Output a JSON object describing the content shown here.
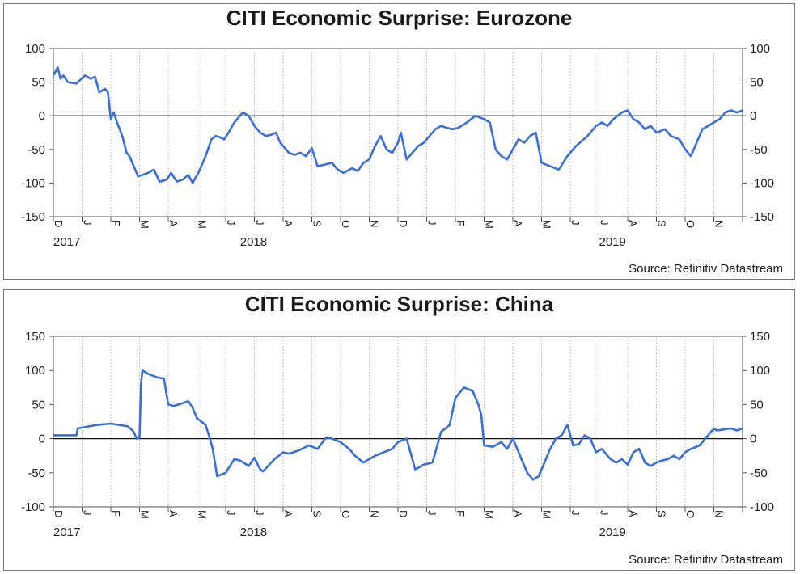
{
  "chart_data": [
    {
      "type": "line",
      "title": "CITI Economic Surprise: Eurozone",
      "source": "Source: Refinitiv Datastream",
      "ylim": [
        -150,
        100
      ],
      "yticks": [
        100,
        50,
        0,
        -50,
        -100,
        -150
      ],
      "x_labels": [
        "D",
        "J",
        "F",
        "M",
        "A",
        "M",
        "J",
        "J",
        "A",
        "S",
        "O",
        "N",
        "D",
        "J",
        "F",
        "M",
        "A",
        "M",
        "J",
        "J",
        "A",
        "S",
        "O",
        "N"
      ],
      "x_years": [
        {
          "label": "2017",
          "month_index": 0
        },
        {
          "label": "2018",
          "month_index": 6.5
        },
        {
          "label": "2019",
          "month_index": 19
        }
      ],
      "grid": true,
      "line_color": "#3b6fd8",
      "series": [
        {
          "x": [
            0,
            0.15,
            0.25,
            0.35,
            0.5,
            0.8,
            1.1,
            1.3,
            1.45,
            1.6,
            1.8,
            1.9,
            2.0,
            2.1,
            2.2,
            2.4,
            2.55,
            2.65,
            2.8,
            2.95,
            3.1,
            3.3,
            3.5,
            3.7,
            3.95,
            4.1,
            4.3,
            4.5,
            4.7,
            4.85,
            4.95,
            5.05,
            5.15,
            5.3,
            5.5,
            5.65,
            5.8,
            5.95,
            6.1,
            6.3,
            6.6,
            6.8,
            7.0,
            7.2,
            7.4,
            7.6,
            7.75,
            7.9,
            8.0,
            8.2,
            8.4,
            8.6,
            8.8,
            9.0,
            9.2,
            9.5,
            9.7,
            9.9,
            10.1,
            10.4,
            10.6,
            10.8,
            11.0,
            11.2,
            11.4,
            11.6,
            11.8,
            12.0,
            12.1,
            12.3,
            12.5,
            12.7,
            12.9,
            13.1,
            13.3,
            13.5,
            13.7,
            13.9,
            14.1,
            14.4,
            14.7,
            15.0,
            15.2,
            15.4,
            15.6,
            15.8,
            16.0,
            16.2,
            16.4,
            16.6,
            16.8,
            17.0,
            17.3,
            17.6,
            17.9,
            18.2,
            18.6,
            18.9,
            19.1,
            19.3,
            19.5,
            19.8,
            20.0,
            20.2,
            20.4,
            20.6,
            20.8,
            21.0,
            21.3,
            21.5,
            21.8,
            22.0,
            22.2,
            22.4,
            22.6,
            22.8,
            23.0,
            23.2,
            23.4,
            23.6,
            23.8,
            24.0
          ],
          "values": [
            60,
            72,
            55,
            60,
            50,
            48,
            60,
            55,
            58,
            35,
            40,
            35,
            -5,
            5,
            -8,
            -30,
            -55,
            -60,
            -75,
            -90,
            -88,
            -85,
            -80,
            -98,
            -95,
            -85,
            -98,
            -95,
            -88,
            -100,
            -92,
            -85,
            -75,
            -60,
            -35,
            -30,
            -32,
            -35,
            -25,
            -10,
            5,
            0,
            -15,
            -25,
            -30,
            -28,
            -25,
            -40,
            -45,
            -55,
            -58,
            -55,
            -60,
            -48,
            -75,
            -72,
            -70,
            -80,
            -85,
            -78,
            -82,
            -70,
            -65,
            -45,
            -30,
            -50,
            -55,
            -40,
            -25,
            -65,
            -55,
            -45,
            -40,
            -30,
            -20,
            -15,
            -18,
            -20,
            -18,
            -10,
            0,
            -5,
            -10,
            -50,
            -60,
            -65,
            -50,
            -35,
            -40,
            -30,
            -25,
            -70,
            -75,
            -80,
            -60,
            -45,
            -30,
            -15,
            -10,
            -15,
            -5,
            5,
            8,
            -5,
            -10,
            -20,
            -15,
            -25,
            -20,
            -30,
            -35,
            -50,
            -60,
            -40,
            -20,
            -15,
            -10,
            -5,
            5,
            8,
            5,
            8
          ],
          "name": ""
        }
      ]
    },
    {
      "type": "line",
      "title": "CITI Economic Surprise: China",
      "source": "Source: Refinitiv Datastream",
      "ylim": [
        -100,
        150
      ],
      "yticks": [
        150,
        100,
        50,
        0,
        -50,
        -100
      ],
      "x_labels": [
        "D",
        "J",
        "F",
        "M",
        "A",
        "M",
        "J",
        "J",
        "A",
        "S",
        "O",
        "N",
        "D",
        "J",
        "F",
        "M",
        "A",
        "M",
        "J",
        "J",
        "A",
        "S",
        "O",
        "N"
      ],
      "x_years": [
        {
          "label": "2017",
          "month_index": 0
        },
        {
          "label": "2018",
          "month_index": 6.5
        },
        {
          "label": "2019",
          "month_index": 19
        }
      ],
      "grid": true,
      "line_color": "#3b6fd8",
      "series": [
        {
          "x": [
            0,
            0.8,
            0.85,
            1.5,
            2.0,
            2.6,
            2.8,
            2.9,
            3.0,
            3.05,
            3.1,
            3.3,
            3.6,
            3.85,
            4.0,
            4.2,
            4.5,
            4.7,
            4.85,
            5.0,
            5.3,
            5.45,
            5.55,
            5.7,
            6.0,
            6.3,
            6.5,
            6.8,
            7.0,
            7.2,
            7.3,
            7.7,
            8.0,
            8.2,
            8.5,
            8.9,
            9.2,
            9.5,
            9.7,
            10.0,
            10.3,
            10.5,
            10.8,
            11.0,
            11.2,
            11.5,
            11.8,
            12.0,
            12.3,
            12.6,
            12.9,
            13.2,
            13.5,
            13.8,
            14.0,
            14.3,
            14.6,
            14.8,
            14.9,
            15.0,
            15.3,
            15.6,
            15.8,
            16.0,
            16.1,
            16.3,
            16.5,
            16.7,
            16.9,
            17.1,
            17.3,
            17.5,
            17.7,
            17.9,
            18.1,
            18.3,
            18.5,
            18.7,
            18.9,
            19.1,
            19.4,
            19.6,
            19.8,
            20.0,
            20.2,
            20.4,
            20.6,
            20.8,
            21.0,
            21.2,
            21.4,
            21.6,
            21.8,
            22.0,
            22.2,
            22.5,
            22.7,
            22.9,
            23.0,
            23.1,
            23.3,
            23.4,
            23.6,
            23.8,
            24.0
          ],
          "values": [
            5,
            5,
            15,
            20,
            22,
            18,
            10,
            0,
            2,
            80,
            100,
            95,
            90,
            88,
            50,
            48,
            52,
            55,
            45,
            30,
            20,
            0,
            -15,
            -55,
            -50,
            -30,
            -32,
            -40,
            -28,
            -45,
            -48,
            -30,
            -20,
            -22,
            -18,
            -10,
            -15,
            2,
            0,
            -5,
            -15,
            -25,
            -35,
            -30,
            -25,
            -20,
            -15,
            -5,
            0,
            -45,
            -38,
            -35,
            10,
            20,
            60,
            75,
            70,
            50,
            35,
            -10,
            -12,
            -5,
            -15,
            0,
            -10,
            -30,
            -50,
            -60,
            -55,
            -35,
            -15,
            0,
            5,
            20,
            -10,
            -8,
            5,
            0,
            -20,
            -15,
            -30,
            -35,
            -30,
            -38,
            -20,
            -15,
            -35,
            -40,
            -35,
            -32,
            -30,
            -25,
            -30,
            -20,
            -15,
            -10,
            0,
            10,
            15,
            12,
            13,
            14,
            15,
            12,
            15
          ],
          "name": ""
        }
      ]
    }
  ]
}
